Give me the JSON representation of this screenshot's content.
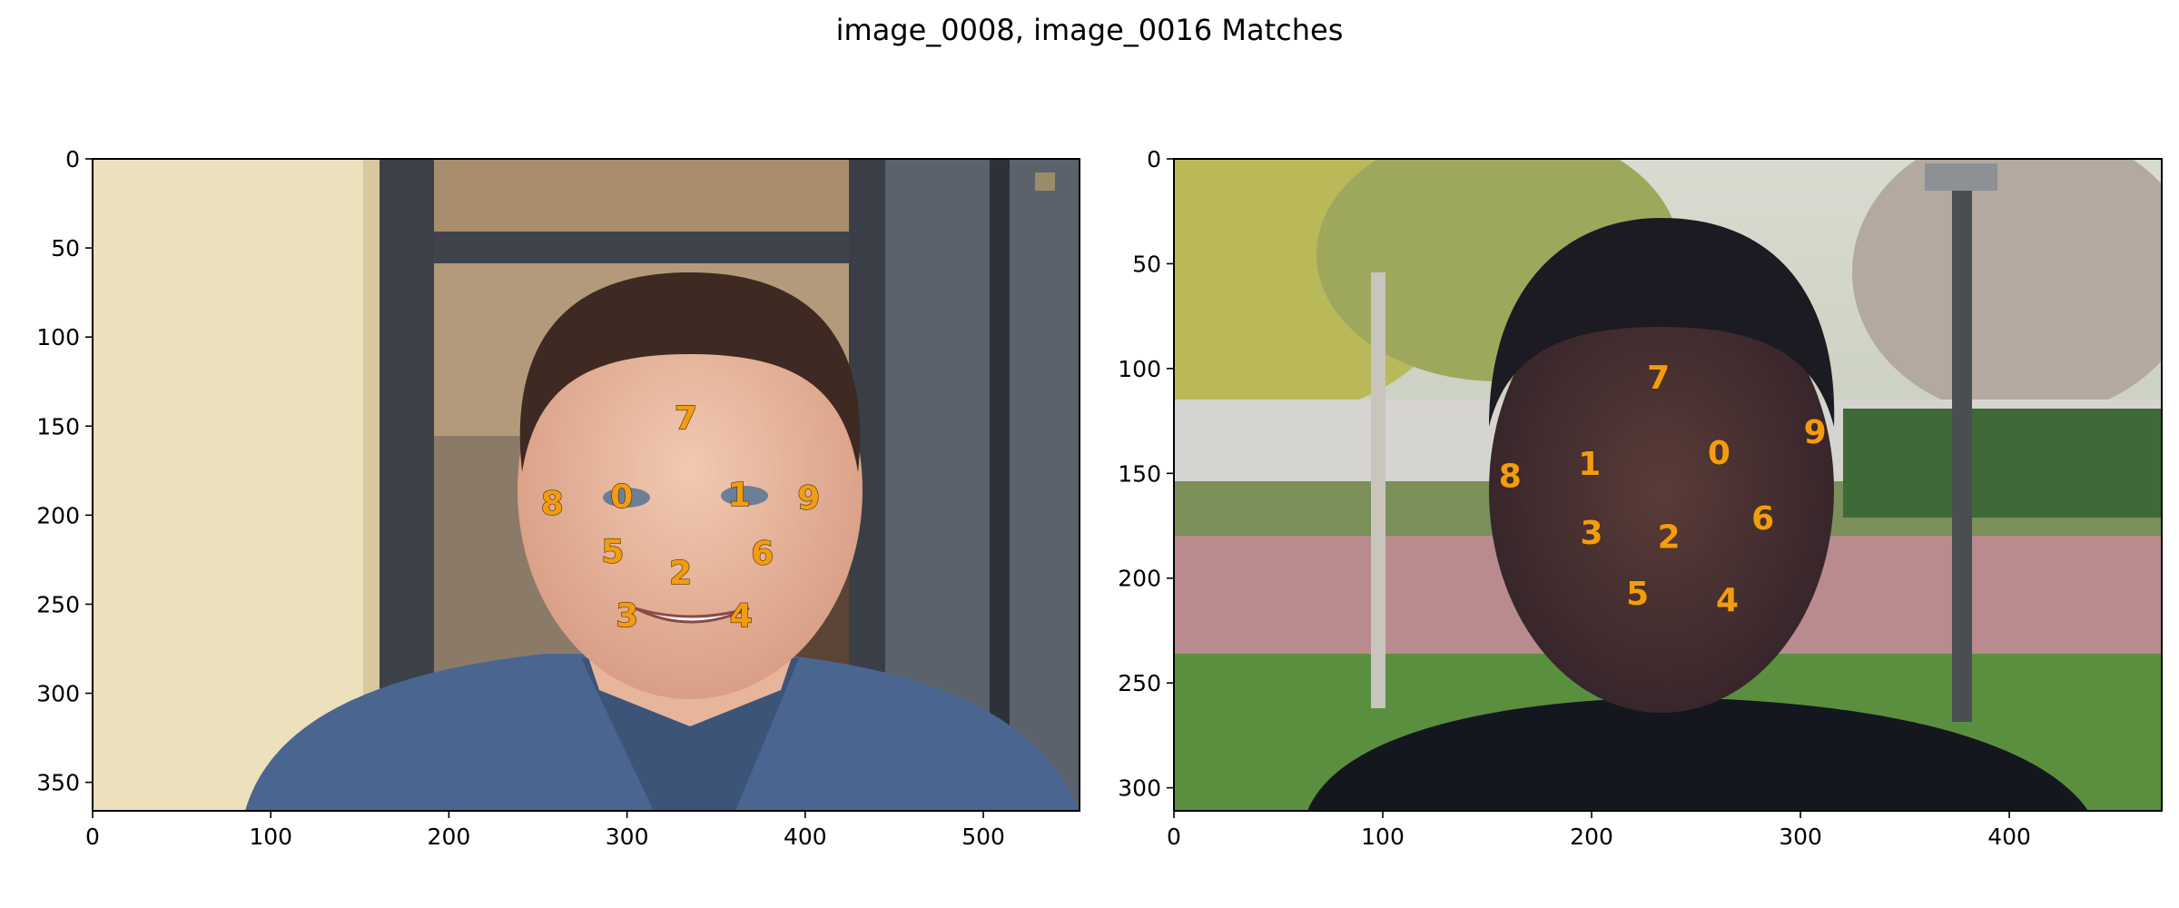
{
  "title": "image_0008, image_0016 Matches",
  "colors": {
    "keypoint_label": "#f39c12",
    "axis": "#000000",
    "background": "#ffffff"
  },
  "chart_data": [
    {
      "type": "scatter",
      "title": "",
      "image_content": "photo of a man's face indoors, beige wall and dark door frame behind him",
      "image_size": [
        554,
        366
      ],
      "xlim": [
        0,
        554
      ],
      "ylim": [
        366,
        0
      ],
      "y_inverted": true,
      "xticks": [
        0,
        100,
        200,
        300,
        400,
        500
      ],
      "yticks": [
        0,
        50,
        100,
        150,
        200,
        250,
        300,
        350
      ],
      "grid": false,
      "points": [
        {
          "label": "0",
          "x": 297,
          "y": 189
        },
        {
          "label": "1",
          "x": 363,
          "y": 188
        },
        {
          "label": "2",
          "x": 330,
          "y": 232
        },
        {
          "label": "3",
          "x": 300,
          "y": 256
        },
        {
          "label": "4",
          "x": 364,
          "y": 256
        },
        {
          "label": "5",
          "x": 292,
          "y": 220
        },
        {
          "label": "6",
          "x": 376,
          "y": 221
        },
        {
          "label": "7",
          "x": 333,
          "y": 145
        },
        {
          "label": "8",
          "x": 258,
          "y": 193
        },
        {
          "label": "9",
          "x": 402,
          "y": 190
        }
      ]
    },
    {
      "type": "scatter",
      "title": "",
      "image_content": "photo of a man's face outdoors, trees, hedges and a lamp post behind him",
      "image_size": [
        473,
        311
      ],
      "xlim": [
        0,
        473
      ],
      "ylim": [
        311,
        0
      ],
      "y_inverted": true,
      "xticks": [
        0,
        100,
        200,
        300,
        400
      ],
      "yticks": [
        0,
        50,
        100,
        150,
        200,
        250,
        300
      ],
      "grid": false,
      "points": [
        {
          "label": "0",
          "x": 261,
          "y": 140
        },
        {
          "label": "1",
          "x": 199,
          "y": 145
        },
        {
          "label": "2",
          "x": 237,
          "y": 180
        },
        {
          "label": "3",
          "x": 200,
          "y": 178
        },
        {
          "label": "4",
          "x": 265,
          "y": 210
        },
        {
          "label": "5",
          "x": 222,
          "y": 207
        },
        {
          "label": "6",
          "x": 282,
          "y": 171
        },
        {
          "label": "7",
          "x": 232,
          "y": 104
        },
        {
          "label": "8",
          "x": 161,
          "y": 151
        },
        {
          "label": "9",
          "x": 307,
          "y": 130
        }
      ]
    }
  ]
}
